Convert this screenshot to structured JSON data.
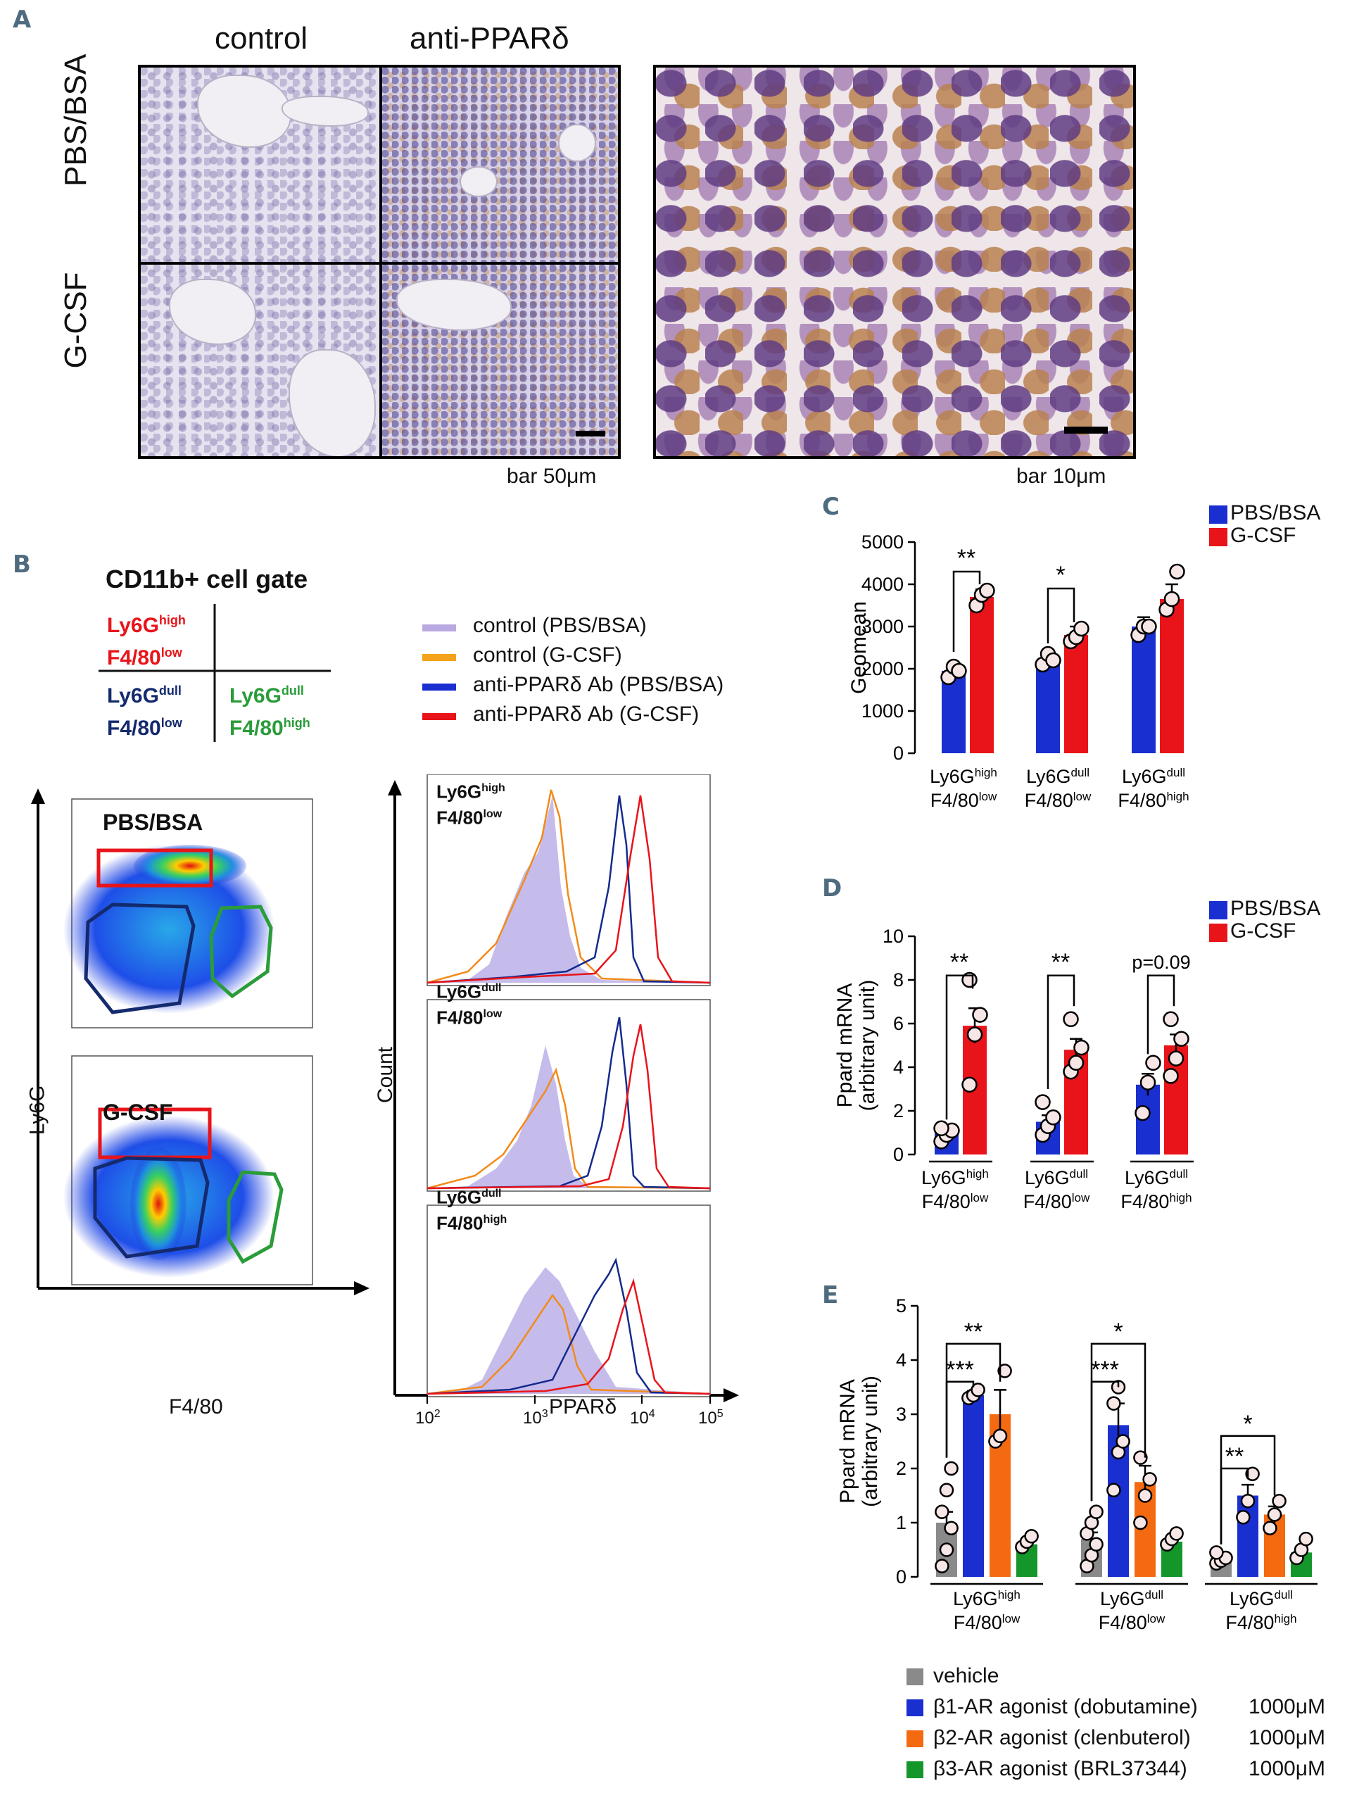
{
  "panel_a": {
    "letter": "A",
    "col_labels": [
      "control",
      "anti-PPARδ"
    ],
    "row_labels": [
      "PBS/BSA",
      "G-CSF"
    ],
    "scale_left": "bar 50μm",
    "scale_right": "bar 10μm"
  },
  "panel_b": {
    "letter": "B",
    "gate_title": "CD11b+ cell gate",
    "quadrants": {
      "q1_main": "Ly6G",
      "q1_sup": "high",
      "q1_line2": "F4/80",
      "q1_sup2": "low",
      "q3_main": "Ly6G",
      "q3_sup": "dull",
      "q3_line2": "F4/80",
      "q3_sup2": "low",
      "q4_main": "Ly6G",
      "q4_sup": "dull",
      "q4_line2": "F4/80",
      "q4_sup2": "high"
    },
    "legend": [
      {
        "label": "control (PBS/BSA)",
        "color": "#b9a9e0"
      },
      {
        "label": "control (G-CSF)",
        "color": "#f5a31a"
      },
      {
        "label": "anti-PPARδ Ab (PBS/BSA)",
        "color": "#1a2fd0"
      },
      {
        "label": "anti-PPARδ Ab (G-CSF)",
        "color": "#e8141a"
      }
    ],
    "dot_plots": [
      "PBS/BSA",
      "G-CSF"
    ],
    "dot_x_label": "F4/80",
    "dot_y_label": "Ly6G",
    "histograms": [
      {
        "l1": "Ly6G",
        "s1": "high",
        "l2": "F4/80",
        "s2": "low"
      },
      {
        "l1": "Ly6G",
        "s1": "dull",
        "l2": "F4/80",
        "s2": "low"
      },
      {
        "l1": "Ly6G",
        "s1": "dull",
        "l2": "F4/80",
        "s2": "high"
      }
    ],
    "hist_y_label": "Count",
    "hist_x_label": "PPARδ",
    "hist_ticks": [
      "10",
      "2",
      "10",
      "3",
      "10",
      "4",
      "10",
      "5"
    ]
  },
  "legend_cd": [
    {
      "label": "PBS/BSA",
      "color": "#1a2fd0"
    },
    {
      "label": "G-CSF",
      "color": "#e8141a"
    }
  ],
  "legend_e": [
    {
      "label": "vehicle",
      "color": "#8a8a8a"
    },
    {
      "label": "β1-AR agonist (dobutamine)",
      "dose": "1000μM",
      "color": "#1a2fd0"
    },
    {
      "label": "β2-AR agonist (clenbuterol)",
      "dose": "1000μM",
      "color": "#f36a10"
    },
    {
      "label": "β3-AR agonist (BRL37344)",
      "dose": "1000μM",
      "color": "#14962a"
    }
  ],
  "group_labels": [
    {
      "main1": "Ly6G",
      "sup1": "high",
      "main2": "F4/80",
      "sup2": "low"
    },
    {
      "main1": "Ly6G",
      "sup1": "dull",
      "main2": "F4/80",
      "sup2": "low"
    },
    {
      "main1": "Ly6G",
      "sup1": "dull",
      "main2": "F4/80",
      "sup2": "high"
    }
  ],
  "chart_data": [
    {
      "panel": "C",
      "type": "bar",
      "ylabel": "Geomean",
      "ylim": [
        0,
        5000
      ],
      "yticks": [
        "0",
        "1000",
        "2000",
        "3000",
        "4000",
        "5000"
      ],
      "series": [
        {
          "name": "PBS/BSA",
          "values": [
            1950,
            2200,
            3000
          ],
          "errors": [
            150,
            120,
            220
          ]
        },
        {
          "name": "G-CSF",
          "values": [
            3700,
            2800,
            3650
          ],
          "errors": [
            180,
            200,
            350
          ]
        }
      ],
      "points": [
        [
          [
            1800,
            2050,
            1950
          ],
          [
            3500,
            3750,
            3850
          ]
        ],
        [
          [
            2100,
            2350,
            2200
          ],
          [
            2650,
            2750,
            2950
          ]
        ],
        [
          [
            2800,
            3000,
            3000
          ],
          [
            3400,
            3650,
            4300
          ]
        ]
      ],
      "sig": [
        "**",
        "*"
      ]
    },
    {
      "panel": "D",
      "type": "bar",
      "ylabel": "Ppard mRNA",
      "ylabel2": "(arbitrary unit)",
      "ylim": [
        0,
        10
      ],
      "yticks": [
        "0",
        "2",
        "4",
        "6",
        "8",
        "10"
      ],
      "series": [
        {
          "name": "PBS/BSA",
          "values": [
            1.0,
            1.5,
            3.2
          ],
          "errors": [
            0.15,
            0.3,
            0.5
          ]
        },
        {
          "name": "G-CSF",
          "values": [
            5.9,
            4.8,
            5.0
          ],
          "errors": [
            0.8,
            0.5,
            0.5
          ]
        }
      ],
      "points": [
        [
          [
            0.6,
            0.9,
            1.1,
            1.2
          ],
          [
            3.2,
            5.5,
            6.4,
            8.0
          ]
        ],
        [
          [
            0.9,
            1.3,
            1.7,
            2.4
          ],
          [
            3.8,
            4.2,
            4.9,
            6.2
          ]
        ],
        [
          [
            1.9,
            3.3,
            4.2
          ],
          [
            3.6,
            4.4,
            5.3,
            6.2
          ]
        ]
      ],
      "sig": [
        "**",
        "**",
        "p=0.09"
      ]
    },
    {
      "panel": "E",
      "type": "bar",
      "ylabel": "Ppard mRNA",
      "ylabel2": "(arbitrary unit)",
      "ylim": [
        0,
        5
      ],
      "yticks": [
        "0",
        "1",
        "2",
        "3",
        "4",
        "5"
      ],
      "series": [
        {
          "name": "vehicle",
          "values": [
            1.0,
            0.7,
            0.35
          ],
          "errors": [
            0.2,
            0.12,
            0.05
          ]
        },
        {
          "name": "β1-AR agonist (dobutamine)",
          "values": [
            3.35,
            2.8,
            1.5
          ],
          "errors": [
            0.08,
            0.4,
            0.2
          ]
        },
        {
          "name": "β2-AR agonist (clenbuterol)",
          "values": [
            3.0,
            1.75,
            1.15
          ],
          "errors": [
            0.45,
            0.3,
            0.15
          ]
        },
        {
          "name": "β3-AR agonist (BRL37344)",
          "values": [
            0.6,
            0.65,
            0.45
          ],
          "errors": [
            0.05,
            0.05,
            0.1
          ]
        }
      ],
      "points": [
        [
          [
            0.2,
            0.5,
            0.9,
            1.2,
            1.6,
            2.0
          ],
          [
            3.3,
            3.35,
            3.45
          ],
          [
            2.5,
            2.6,
            3.8
          ],
          [
            0.55,
            0.65,
            0.75
          ]
        ],
        [
          [
            0.2,
            0.4,
            0.6,
            0.8,
            1.0,
            1.2
          ],
          [
            1.6,
            2.3,
            2.5,
            3.2,
            3.5
          ],
          [
            1.0,
            1.5,
            1.8,
            2.2
          ],
          [
            0.6,
            0.7,
            0.8
          ]
        ],
        [
          [
            0.25,
            0.3,
            0.35,
            0.45
          ],
          [
            1.1,
            1.4,
            1.9
          ],
          [
            0.9,
            1.15,
            1.4
          ],
          [
            0.35,
            0.5,
            0.7
          ]
        ]
      ],
      "sig": [
        "**",
        "***",
        "*",
        "***",
        "*",
        "**"
      ]
    }
  ]
}
